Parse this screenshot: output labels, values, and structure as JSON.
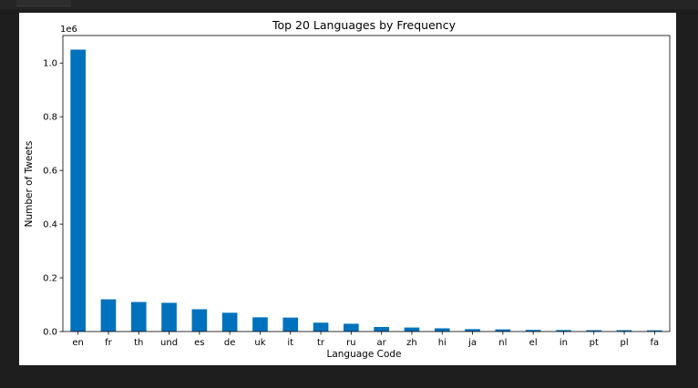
{
  "chart_data": {
    "type": "bar",
    "title": "Top 20 Languages by Frequency",
    "xlabel": "Language Code",
    "ylabel": "Number of Tweets",
    "offset_label": "1e6",
    "categories": [
      "en",
      "fr",
      "th",
      "und",
      "es",
      "de",
      "uk",
      "it",
      "tr",
      "ru",
      "ar",
      "zh",
      "hi",
      "ja",
      "nl",
      "el",
      "in",
      "pt",
      "pl",
      "fa"
    ],
    "values": [
      1050000,
      120000,
      110000,
      107000,
      83000,
      70000,
      53000,
      52000,
      33000,
      29000,
      17000,
      15000,
      12000,
      9000,
      8000,
      6000,
      5500,
      5000,
      5000,
      4500
    ],
    "ylim": [
      0,
      1102500
    ],
    "yticks": [
      0,
      200000,
      400000,
      600000,
      800000,
      1000000
    ],
    "ytick_labels": [
      "0.0",
      "0.2",
      "0.4",
      "0.6",
      "0.8",
      "1.0"
    ],
    "bar_color": "#0072bd",
    "grid": false,
    "legend": "none"
  }
}
